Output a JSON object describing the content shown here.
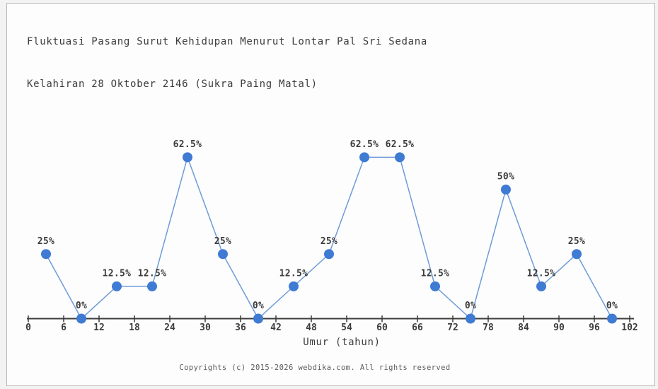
{
  "page": {
    "background_outer": "#f3f3f3",
    "background_inner": "#fdfdfd",
    "border_color": "#b6b6b6"
  },
  "chart_data": {
    "type": "line",
    "title": "Fluktuasi Pasang Surut Kehidupan Menurut Lontar Pal Sri Sedana",
    "subtitle": "Kelahiran 28 Oktober 2146 (Sukra Paing Matal)",
    "xlabel": "Umur (tahun)",
    "x": [
      3,
      9,
      15,
      21,
      27,
      33,
      39,
      45,
      51,
      57,
      63,
      69,
      75,
      81,
      87,
      93,
      99
    ],
    "values": [
      25,
      0,
      12.5,
      12.5,
      62.5,
      25,
      0,
      12.5,
      25,
      62.5,
      62.5,
      12.5,
      0,
      50,
      12.5,
      25,
      0
    ],
    "point_labels": [
      "25%",
      "0%",
      "12.5%",
      "12.5%",
      "62.5%",
      "25%",
      "0%",
      "12.5%",
      "25%",
      "62.5%",
      "62.5%",
      "12.5%",
      "0%",
      "50%",
      "12.5%",
      "25%",
      "0%"
    ],
    "x_ticks": [
      0,
      6,
      12,
      18,
      24,
      30,
      36,
      42,
      48,
      54,
      60,
      66,
      72,
      78,
      84,
      90,
      96,
      102
    ],
    "xlim": [
      0,
      102
    ],
    "ylim": [
      0,
      82
    ],
    "grid": false,
    "legend": "none",
    "colors": {
      "line": "#6e9bd8",
      "marker": "#3f7bd3",
      "axis": "#3c3c3c",
      "text": "#3c3c3c"
    }
  },
  "footer": {
    "copyright": "Copyrights (c) 2015-2026 webdika.com. All rights reserved"
  }
}
